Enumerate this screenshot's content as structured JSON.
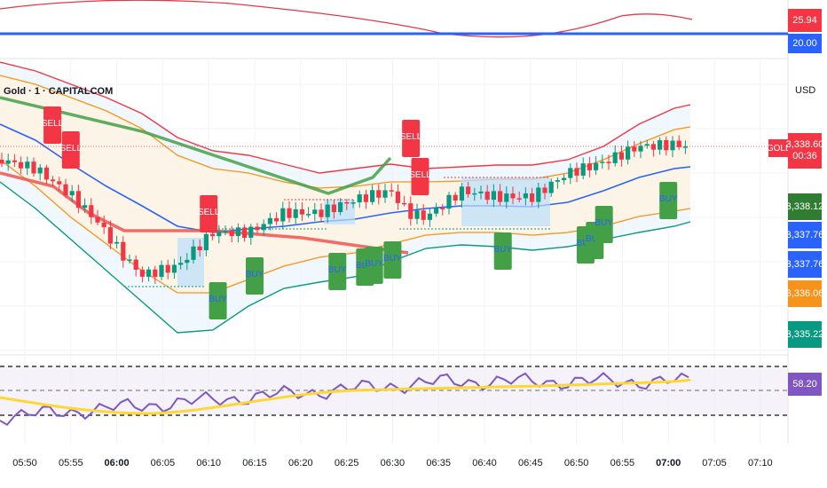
{
  "header": {
    "symbol_title": "Gold · 1 · CAPITALCOM",
    "currency": "USD",
    "symbol_tag": "GOLD"
  },
  "top_panel": {
    "value_chip_1": "25.94",
    "value_chip_2": "20.00"
  },
  "price_scale": {
    "current_price": "3,338.60",
    "countdown": "00:36",
    "chips": [
      {
        "label": "3,338.12",
        "color": "#2e7d32"
      },
      {
        "label": "3,337.76",
        "color": "#2962ff"
      },
      {
        "label": "3,337.76",
        "color": "#2962ff"
      },
      {
        "label": "3,336.06",
        "color": "#f7931a"
      },
      {
        "label": "3,335.22",
        "color": "#089981"
      }
    ]
  },
  "rsi_panel": {
    "value_chip": "58.20",
    "chip_color": "#7e57c2"
  },
  "chart_data": {
    "type": "candlestick",
    "title": "Gold · 1 · CAPITALCOM",
    "ylabel": "USD",
    "x_tick_labels": [
      "05:50",
      "05:55",
      "06:00",
      "06:05",
      "06:10",
      "06:15",
      "06:20",
      "06:25",
      "06:30",
      "06:35",
      "06:40",
      "06:45",
      "06:50",
      "06:55",
      "07:00",
      "07:05",
      "07:10"
    ],
    "bold_ticks": [
      "06:00",
      "07:00"
    ],
    "price_labels": [
      "3,338.60",
      "3,338.12",
      "3,337.76",
      "3,337.76",
      "3,336.06",
      "3,335.22"
    ],
    "signals": [
      {
        "label": "SELL",
        "time": "05:53"
      },
      {
        "label": "SELL",
        "time": "05:55"
      },
      {
        "label": "SELL",
        "time": "06:10"
      },
      {
        "label": "SELL",
        "time": "06:32"
      },
      {
        "label": "SELL",
        "time": "06:33"
      },
      {
        "label": "BUY",
        "time": "06:11"
      },
      {
        "label": "BUY",
        "time": "06:15"
      },
      {
        "label": "BUY",
        "time": "06:24"
      },
      {
        "label": "BUY",
        "time": "06:27"
      },
      {
        "label": "BUY",
        "time": "06:28"
      },
      {
        "label": "BUY",
        "time": "06:30"
      },
      {
        "label": "BUY",
        "time": "06:42"
      },
      {
        "label": "BUY",
        "time": "06:51"
      },
      {
        "label": "BUY",
        "time": "06:52"
      },
      {
        "label": "BUY",
        "time": "06:53"
      },
      {
        "label": "BUY",
        "time": "07:00"
      }
    ],
    "rsi": {
      "value": 58.2,
      "upper_level": 70,
      "lower_level": 30
    },
    "top_indicator": {
      "value": 25.94,
      "level": 20.0
    }
  },
  "colors": {
    "up": "#089981",
    "down": "#f23645",
    "basis": "#2962ff",
    "inner_band": "#f7931a",
    "outer_upper": "#f23645",
    "outer_lower": "#089981",
    "rsi": "#7e57c2",
    "rsi_ma": "#fdd835"
  }
}
